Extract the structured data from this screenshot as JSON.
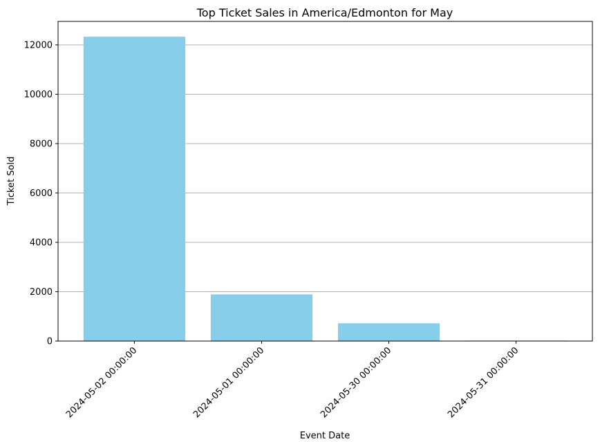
{
  "chart_data": {
    "type": "bar",
    "title": "Top Ticket Sales in America/Edmonton for May",
    "xlabel": "Event Date",
    "ylabel": "Ticket Sold",
    "categories": [
      "2024-05-02 00:00:00",
      "2024-05-01 00:00:00",
      "2024-05-30 00:00:00",
      "2024-05-31 00:00:00"
    ],
    "values": [
      12330,
      1890,
      720,
      20
    ],
    "ylim": [
      0,
      12950
    ],
    "yticks": [
      0,
      2000,
      4000,
      6000,
      8000,
      10000,
      12000
    ],
    "bar_color": "#87ceeb",
    "grid": "y",
    "legend": "none"
  }
}
